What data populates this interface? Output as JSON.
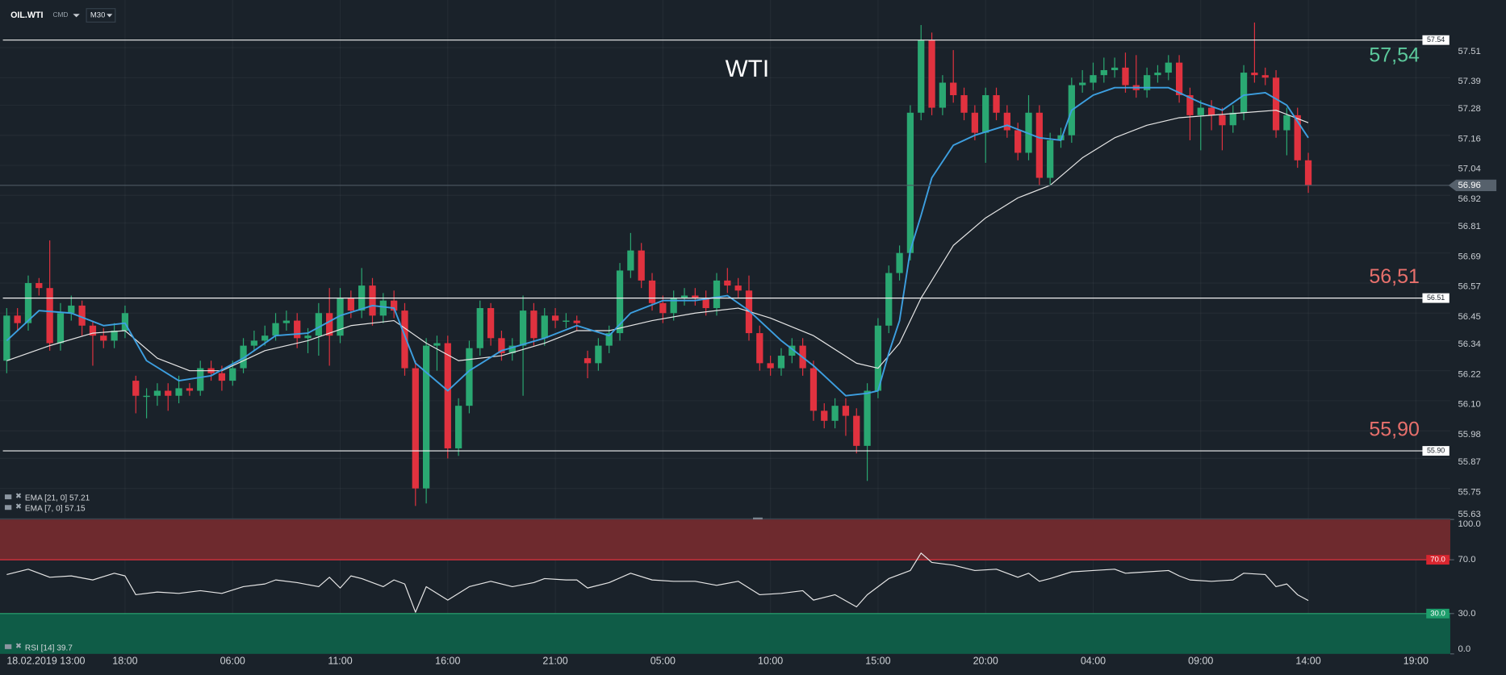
{
  "chart_data": {
    "type": "candlestick",
    "title": "WTI",
    "symbol": "OIL.WTI",
    "market": "CMD",
    "timeframe": "M30",
    "up_color": "#2aa872",
    "down_color": "#e0323f",
    "grid": true,
    "xlim": [
      -0.625,
      134.2
    ],
    "xticks": [
      {
        "value": 0,
        "label": "18.02.2019  13:00"
      },
      {
        "value": 11,
        "label": "18:00"
      },
      {
        "value": 21,
        "label": "06:00"
      },
      {
        "value": 31,
        "label": "11:00"
      },
      {
        "value": 41,
        "label": "16:00"
      },
      {
        "value": 51,
        "label": "21:00"
      },
      {
        "value": 61,
        "label": "05:00"
      },
      {
        "value": 71,
        "label": "10:00"
      },
      {
        "value": 81,
        "label": "15:00"
      },
      {
        "value": 91,
        "label": "20:00"
      },
      {
        "value": 101,
        "label": "04:00"
      },
      {
        "value": 111,
        "label": "09:00"
      },
      {
        "value": 121,
        "label": "14:00"
      },
      {
        "value": 131,
        "label": "19:00"
      }
    ],
    "ylim": [
      55.63,
      57.7
    ],
    "yticks": [
      57.51,
      57.39,
      57.28,
      57.16,
      57.04,
      56.92,
      56.81,
      56.69,
      56.57,
      56.45,
      56.34,
      56.22,
      {
        "value": 56.1,
        "label": "56.10"
      },
      55.98,
      55.87,
      55.75,
      55.63
    ],
    "open": [
      56.26,
      56.44,
      56.41,
      56.57,
      56.55,
      56.33,
      56.45,
      56.48,
      56.4,
      56.36,
      56.34,
      56.38,
      56.18,
      56.12,
      56.12,
      56.14,
      56.12,
      56.15,
      56.14,
      56.23,
      56.21,
      56.18,
      56.23,
      56.32,
      56.34,
      56.36,
      56.41,
      56.42,
      56.35,
      56.36,
      56.45,
      56.36,
      56.51,
      56.46,
      56.56,
      56.44,
      56.5,
      56.46,
      56.23,
      55.75,
      56.32,
      56.33,
      55.91,
      56.08,
      56.31,
      56.47,
      56.35,
      56.29,
      56.32,
      56.46,
      56.35,
      56.44,
      56.42,
      56.42,
      56.27,
      56.25,
      56.32,
      56.37,
      56.62,
      56.7,
      56.58,
      56.49,
      56.45,
      56.51,
      56.52,
      56.51,
      56.47,
      56.58,
      56.56,
      56.54,
      56.37,
      56.25,
      56.23,
      56.28,
      56.32,
      56.23,
      56.06,
      56.02,
      56.08,
      56.04,
      55.92,
      56.14,
      56.4,
      56.61,
      56.69,
      57.25,
      57.54,
      57.27,
      57.37,
      57.32,
      57.25,
      57.17,
      57.32,
      57.25,
      57.18,
      57.09,
      57.25,
      56.99,
      57.14,
      57.16,
      57.36,
      57.37,
      57.4,
      57.42,
      57.43,
      57.36,
      57.34,
      57.4,
      57.41,
      57.45,
      57.32,
      57.24,
      57.27,
      57.24,
      57.2,
      57.25,
      57.41,
      57.4,
      57.39,
      57.18,
      57.24,
      57.06
    ],
    "high": [
      56.47,
      56.47,
      56.6,
      56.59,
      56.74,
      56.49,
      56.52,
      56.5,
      56.42,
      56.39,
      56.41,
      56.48,
      56.2,
      56.15,
      56.17,
      56.17,
      56.2,
      56.17,
      56.26,
      56.26,
      56.24,
      56.26,
      56.35,
      56.38,
      56.4,
      56.45,
      56.46,
      56.45,
      56.39,
      56.49,
      56.55,
      56.55,
      56.54,
      56.63,
      56.59,
      56.53,
      56.54,
      56.49,
      56.26,
      56.35,
      56.36,
      56.36,
      56.11,
      56.34,
      56.5,
      56.49,
      56.38,
      56.35,
      56.52,
      56.49,
      56.47,
      56.47,
      56.45,
      56.44,
      56.3,
      56.35,
      56.4,
      56.65,
      56.77,
      56.73,
      56.61,
      56.52,
      56.54,
      56.55,
      56.55,
      56.54,
      56.61,
      56.63,
      56.59,
      56.6,
      56.4,
      56.28,
      56.31,
      56.35,
      56.35,
      56.26,
      56.09,
      56.11,
      56.11,
      56.07,
      56.17,
      56.43,
      56.64,
      56.72,
      57.28,
      57.6,
      57.57,
      57.4,
      57.5,
      57.35,
      57.28,
      57.35,
      57.35,
      57.28,
      57.21,
      57.32,
      57.28,
      57.17,
      57.19,
      57.39,
      57.42,
      57.45,
      57.47,
      57.47,
      57.49,
      57.48,
      57.43,
      57.44,
      57.48,
      57.48,
      57.35,
      57.3,
      57.3,
      57.27,
      57.28,
      57.44,
      57.61,
      57.43,
      57.42,
      57.27,
      57.27,
      57.09
    ],
    "low": [
      56.21,
      56.38,
      56.38,
      56.52,
      56.3,
      56.3,
      56.42,
      56.36,
      56.24,
      56.31,
      56.31,
      56.35,
      56.05,
      56.03,
      56.08,
      56.06,
      56.09,
      56.12,
      56.12,
      56.18,
      56.14,
      56.16,
      56.21,
      56.3,
      56.32,
      56.34,
      56.38,
      56.31,
      56.29,
      56.28,
      56.24,
      56.33,
      56.43,
      56.43,
      56.4,
      56.41,
      56.43,
      56.2,
      55.68,
      55.69,
      56.22,
      55.87,
      55.88,
      56.05,
      56.28,
      56.32,
      56.26,
      56.26,
      56.12,
      56.32,
      56.32,
      56.39,
      56.39,
      56.38,
      56.19,
      56.22,
      56.29,
      56.34,
      56.59,
      56.55,
      56.46,
      56.41,
      56.42,
      56.48,
      56.48,
      56.44,
      56.44,
      56.53,
      56.51,
      56.34,
      56.22,
      56.2,
      56.2,
      56.25,
      56.2,
      56.02,
      55.99,
      55.99,
      55.96,
      55.89,
      55.78,
      56.11,
      56.37,
      56.58,
      56.66,
      57.22,
      57.24,
      57.24,
      57.29,
      57.22,
      57.14,
      57.05,
      57.22,
      57.15,
      57.06,
      57.06,
      56.96,
      56.96,
      57.11,
      57.13,
      57.33,
      57.34,
      57.37,
      57.39,
      57.33,
      57.31,
      57.31,
      57.37,
      57.38,
      57.29,
      57.14,
      57.1,
      57.18,
      57.1,
      57.17,
      57.22,
      57.37,
      57.36,
      57.15,
      57.08,
      57.03,
      56.93
    ],
    "close": [
      56.44,
      56.41,
      56.57,
      56.55,
      56.33,
      56.45,
      56.48,
      56.4,
      56.36,
      56.34,
      56.38,
      56.45,
      56.12,
      56.12,
      56.14,
      56.12,
      56.15,
      56.14,
      56.23,
      56.21,
      56.18,
      56.23,
      56.32,
      56.34,
      56.36,
      56.41,
      56.42,
      56.35,
      56.36,
      56.45,
      56.36,
      56.51,
      56.46,
      56.56,
      56.44,
      56.5,
      56.46,
      56.23,
      55.75,
      56.32,
      56.33,
      55.91,
      56.08,
      56.31,
      56.47,
      56.35,
      56.29,
      56.32,
      56.46,
      56.35,
      56.44,
      56.42,
      56.42,
      56.41,
      56.25,
      56.32,
      56.37,
      56.62,
      56.7,
      56.58,
      56.49,
      56.45,
      56.51,
      56.52,
      56.51,
      56.47,
      56.58,
      56.56,
      56.54,
      56.37,
      56.25,
      56.23,
      56.28,
      56.32,
      56.23,
      56.06,
      56.02,
      56.08,
      56.04,
      55.92,
      56.14,
      56.4,
      56.61,
      56.69,
      57.25,
      57.54,
      57.27,
      57.37,
      57.32,
      57.25,
      57.17,
      57.32,
      57.25,
      57.18,
      57.09,
      57.25,
      56.99,
      57.14,
      57.16,
      57.36,
      57.37,
      57.4,
      57.42,
      57.43,
      57.36,
      57.34,
      57.4,
      57.41,
      57.45,
      57.32,
      57.24,
      57.27,
      57.24,
      57.2,
      57.25,
      57.41,
      57.4,
      57.39,
      57.18,
      57.24,
      57.06,
      56.96
    ],
    "levels": [
      {
        "value": 57.54,
        "label": "57,54",
        "box_label": "57.54",
        "color": "#5cc99c"
      },
      {
        "value": 56.51,
        "label": "56,51",
        "box_label": "56.51",
        "color": "#e8706c"
      },
      {
        "value": 55.9,
        "label": "55,90",
        "box_label": "55.90",
        "color": "#e8706c"
      }
    ],
    "last_price": {
      "value": 56.96
    },
    "indicators": [
      {
        "name": "EMA [21, 0] 57.21",
        "color": "#e6e6e6",
        "x": [
          0,
          4,
          8,
          11,
          14,
          17,
          20,
          24,
          28,
          32,
          36,
          39,
          42,
          46,
          50,
          53,
          56,
          60,
          64,
          68,
          71,
          75,
          79,
          81,
          83,
          85,
          88,
          91,
          94,
          97,
          100,
          103,
          106,
          109,
          112,
          115,
          118,
          121
        ],
        "values": [
          56.26,
          56.32,
          56.37,
          56.38,
          56.27,
          56.22,
          56.22,
          56.3,
          56.34,
          56.4,
          56.42,
          56.33,
          56.26,
          56.28,
          56.33,
          56.38,
          56.38,
          56.42,
          56.45,
          56.47,
          56.43,
          56.36,
          56.25,
          56.23,
          56.33,
          56.51,
          56.72,
          56.83,
          56.91,
          56.96,
          57.07,
          57.15,
          57.2,
          57.23,
          57.24,
          57.25,
          57.26,
          57.21
        ]
      },
      {
        "name": "EMA [7, 0] 57.15",
        "color": "#3d9fe0",
        "x": [
          0,
          3,
          6,
          9,
          11,
          13,
          16,
          19,
          22,
          25,
          28,
          31,
          34,
          36,
          38,
          41,
          43,
          46,
          50,
          53,
          56,
          58,
          61,
          64,
          67,
          69,
          72,
          75,
          78,
          80,
          81,
          82,
          83,
          84,
          85,
          86,
          88,
          90,
          93,
          96,
          98,
          99,
          101,
          103,
          106,
          108,
          111,
          113,
          115,
          117,
          119,
          121
        ],
        "values": [
          56.34,
          56.46,
          56.45,
          56.4,
          56.41,
          56.26,
          56.18,
          56.2,
          56.27,
          56.36,
          56.37,
          56.44,
          56.48,
          56.47,
          56.25,
          56.14,
          56.22,
          56.3,
          56.35,
          56.4,
          56.36,
          56.45,
          56.5,
          56.5,
          56.52,
          56.46,
          56.34,
          56.24,
          56.12,
          56.13,
          56.14,
          56.29,
          56.42,
          56.7,
          56.84,
          56.99,
          57.12,
          57.16,
          57.2,
          57.15,
          57.14,
          57.26,
          57.32,
          57.35,
          57.35,
          57.35,
          57.29,
          57.26,
          57.32,
          57.33,
          57.28,
          57.15
        ]
      }
    ],
    "rsi": {
      "name": "RSI [14] 39.7",
      "color": "#e6e6e6",
      "ylim": [
        0,
        100
      ],
      "yticks": [
        {
          "value": 100,
          "label": "100.0"
        },
        {
          "value": 70,
          "label": "70.0"
        },
        {
          "value": 30,
          "label": "30.0"
        },
        {
          "value": 0,
          "label": "0.0"
        }
      ],
      "overbought": {
        "value": 70,
        "label": "70.0",
        "color": "#6e2a2e"
      },
      "oversold": {
        "value": 30,
        "label": "30.0",
        "color": "#0f5c47"
      },
      "x": [
        0,
        2,
        4,
        6,
        8,
        10,
        11,
        12,
        14,
        16,
        18,
        20,
        22,
        24,
        25,
        27,
        29,
        30,
        31,
        32,
        33,
        35,
        36,
        37,
        38,
        39,
        41,
        43,
        45,
        47,
        49,
        50,
        52,
        53,
        54,
        56,
        58,
        60,
        62,
        64,
        66,
        68,
        70,
        72,
        74,
        75,
        77,
        79,
        80,
        82,
        84,
        85,
        86,
        88,
        90,
        92,
        94,
        95,
        96,
        97,
        99,
        101,
        103,
        104,
        106,
        108,
        109,
        110,
        112,
        114,
        115,
        117,
        118,
        119,
        120,
        121
      ],
      "values": [
        59,
        63,
        57,
        58,
        55,
        60,
        58,
        44,
        46,
        45,
        47,
        45,
        50,
        52,
        55,
        53,
        50,
        57,
        49,
        58,
        56,
        50,
        55,
        52,
        31,
        50,
        40,
        50,
        54,
        50,
        53,
        56,
        55,
        55,
        49,
        53,
        60,
        55,
        54,
        54,
        51,
        54,
        44,
        45,
        47,
        40,
        44,
        35,
        44,
        56,
        62,
        75,
        68,
        66,
        62,
        63,
        57,
        60,
        54,
        56,
        61,
        62,
        63,
        60,
        61,
        62,
        58,
        55,
        54,
        55,
        60,
        59,
        50,
        52,
        44,
        39.7
      ]
    }
  }
}
